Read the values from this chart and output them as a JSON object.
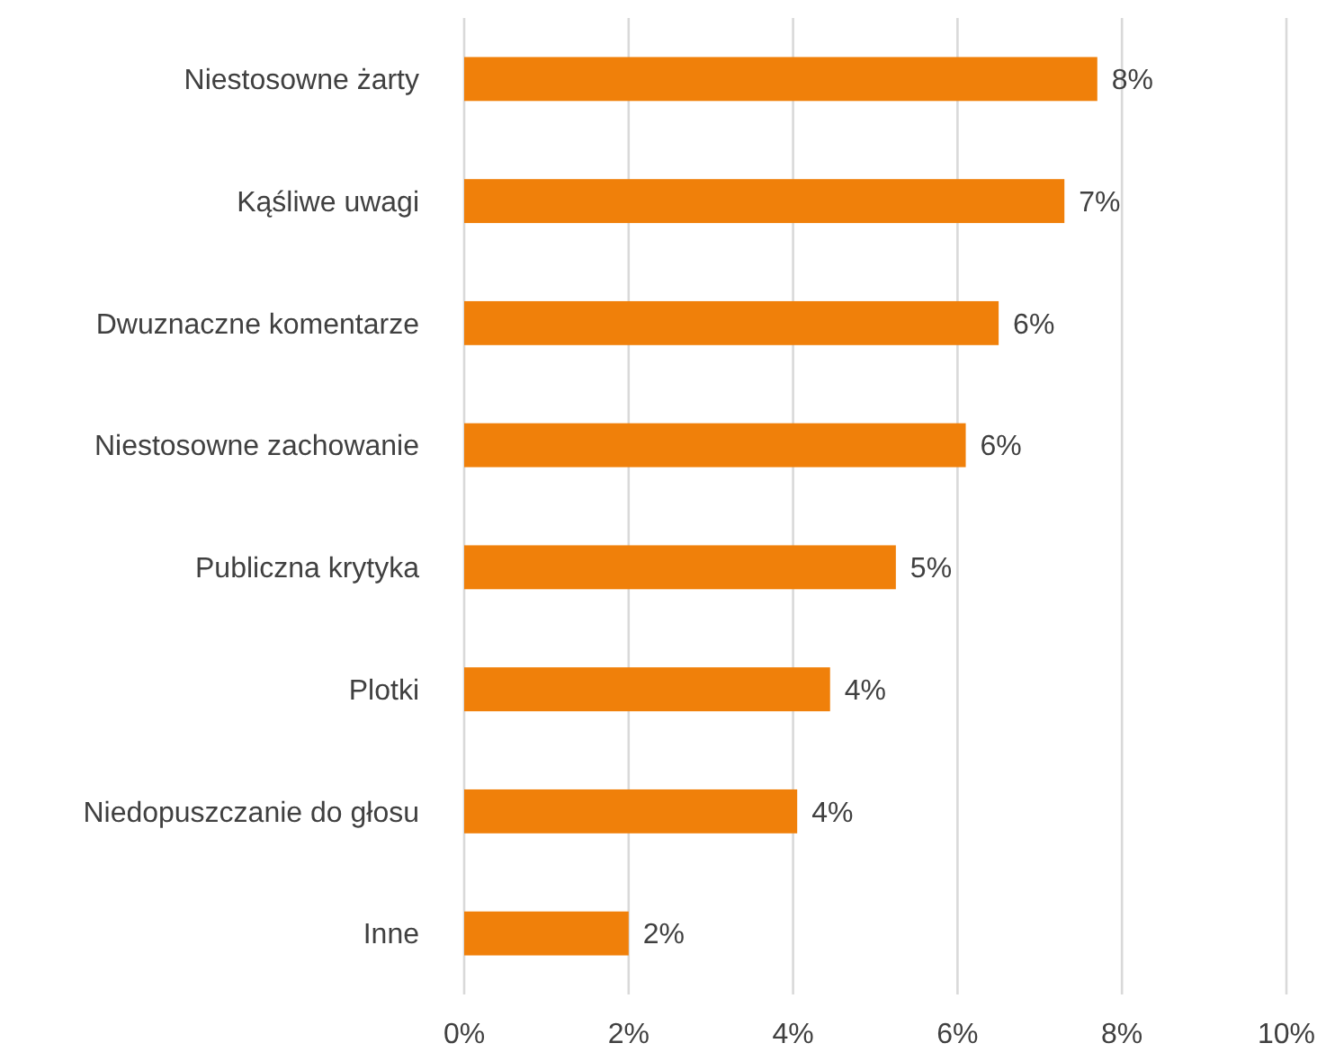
{
  "chart_data": {
    "type": "bar",
    "orientation": "horizontal",
    "categories": [
      "Niestosowne żarty",
      "Kąśliwe uwagi",
      "Dwuznaczne komentarze",
      "Niestosowne zachowanie",
      "Publiczna krytyka",
      "Plotki",
      "Niedopuszczanie do głosu",
      "Inne"
    ],
    "values": [
      7.7,
      7.3,
      6.5,
      6.1,
      5.25,
      4.45,
      4.05,
      2.0
    ],
    "value_labels": [
      "8%",
      "7%",
      "6%",
      "6%",
      "5%",
      "4%",
      "4%",
      "2%"
    ],
    "color": "#f0800a",
    "xlim": [
      0,
      10
    ],
    "xticks": [
      {
        "value": 0,
        "label": "0%"
      },
      {
        "value": 2,
        "label": "2%"
      },
      {
        "value": 4,
        "label": "4%"
      },
      {
        "value": 6,
        "label": "6%"
      },
      {
        "value": 8,
        "label": "8%"
      },
      {
        "value": 10,
        "label": "10%"
      }
    ],
    "grid": "x"
  }
}
